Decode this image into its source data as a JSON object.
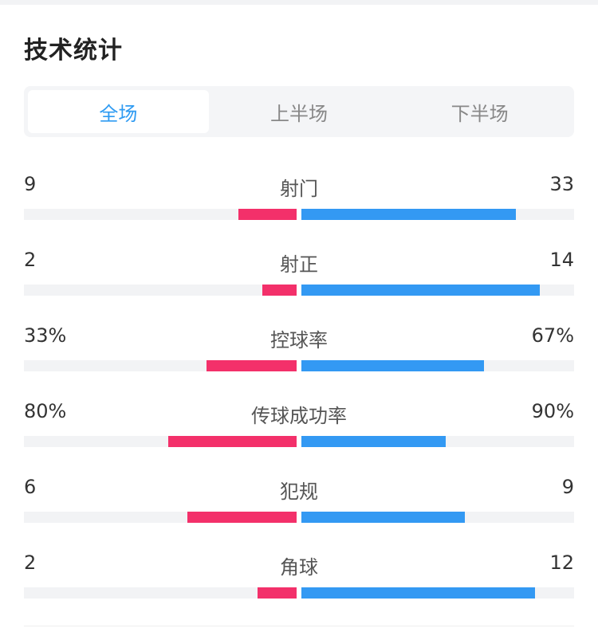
{
  "section_title": "技术统计",
  "tabs": [
    {
      "label": "全场",
      "active": true
    },
    {
      "label": "上半场",
      "active": false
    },
    {
      "label": "下半场",
      "active": false
    }
  ],
  "colors": {
    "home": "#f3306a",
    "away": "#3399f3",
    "active_tab": "#2f9bf2"
  },
  "stats": [
    {
      "label": "射门",
      "home_text": "9",
      "away_text": "33",
      "home_share": 0.214,
      "away_share": 0.786
    },
    {
      "label": "射正",
      "home_text": "2",
      "away_text": "14",
      "home_share": 0.125,
      "away_share": 0.875
    },
    {
      "label": "控球率",
      "home_text": "33%",
      "away_text": "67%",
      "home_share": 0.33,
      "away_share": 0.67
    },
    {
      "label": "传球成功率",
      "home_text": "80%",
      "away_text": "90%",
      "home_share": 0.47,
      "away_share": 0.53
    },
    {
      "label": "犯规",
      "home_text": "6",
      "away_text": "9",
      "home_share": 0.4,
      "away_share": 0.6
    },
    {
      "label": "角球",
      "home_text": "2",
      "away_text": "12",
      "home_share": 0.143,
      "away_share": 0.857
    }
  ]
}
